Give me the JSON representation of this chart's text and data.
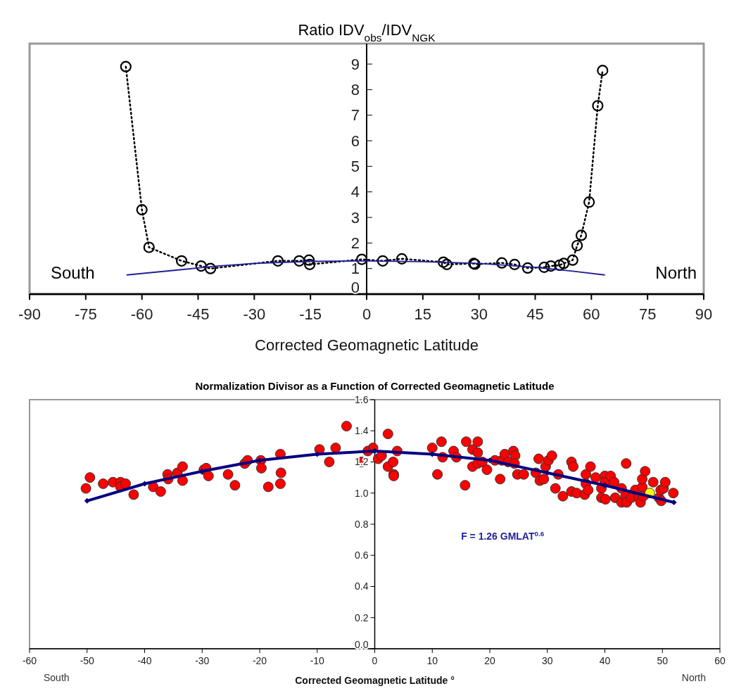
{
  "chart_data": [
    {
      "type": "line",
      "title": "Ratio IDV$_{obs}$/IDV$_{NGK}$",
      "xlabel": "Corrected Geomagnetic Latitude",
      "xlim": [
        -90,
        90
      ],
      "xticks": [
        -90,
        -75,
        -60,
        -45,
        -30,
        -15,
        0,
        15,
        30,
        45,
        60,
        75,
        90
      ],
      "ylim": [
        0,
        9.8
      ],
      "yticks": [
        0,
        1,
        2,
        3,
        4,
        5,
        6,
        7,
        8,
        9
      ],
      "annotations": [
        "South",
        "North"
      ],
      "series": [
        {
          "color": "#000000",
          "marker": "circle",
          "line_style": "dotted",
          "x": [
            -64.3,
            -60,
            -58.1,
            -49.4,
            -44.2,
            -41.7,
            -23.7,
            -18,
            -15.4,
            -15.2,
            -1.3,
            4.3,
            9.4,
            20.5,
            21.4,
            28.6,
            28.9,
            36.1,
            39.5,
            43,
            47.4,
            49.2,
            51.5,
            52.6,
            55,
            56.2,
            57.3,
            59.4,
            61.7,
            63
          ],
          "values": [
            8.9,
            3.3,
            1.83,
            1.3,
            1.1,
            1.0,
            1.3,
            1.3,
            1.33,
            1.16,
            1.36,
            1.3,
            1.38,
            1.25,
            1.16,
            1.2,
            1.17,
            1.22,
            1.16,
            1.02,
            1.05,
            1.1,
            1.13,
            1.2,
            1.33,
            1.9,
            2.3,
            3.6,
            7.37,
            8.75
          ]
        },
        {
          "color": "#1f1f99",
          "marker": "none",
          "line_style": "solid",
          "x": [
            -64,
            -50,
            -40,
            -30,
            -15,
            0,
            15,
            30,
            45,
            55,
            63.5
          ],
          "values": [
            0.75,
            0.95,
            1.1,
            1.2,
            1.28,
            1.3,
            1.27,
            1.2,
            1.05,
            0.9,
            0.75
          ]
        }
      ]
    },
    {
      "type": "scatter",
      "title": "Normalization Divisor as a Function of Corrected Geomagnetic Latitude",
      "xlabel": "Corrected Geomagnetic Latitude °",
      "xlim": [
        -60,
        60
      ],
      "xticks": [
        -60,
        -50,
        -40,
        -30,
        -20,
        -10,
        0,
        10,
        20,
        30,
        40,
        50,
        60
      ],
      "ylim": [
        0,
        1.6
      ],
      "yticks": [
        {
          "value": 0,
          "label": "0.0"
        },
        {
          "value": 0.2,
          "label": "0.2"
        },
        {
          "value": 0.4,
          "label": "0.4"
        },
        {
          "value": 0.6,
          "label": "0.6"
        },
        {
          "value": 0.8,
          "label": "0.8"
        },
        {
          "value": 1,
          "label": "1.0"
        },
        {
          "value": 1.2,
          "label": "1.2"
        },
        {
          "value": 1.4,
          "label": "1.4"
        },
        {
          "value": 1.6,
          "label": "1.6"
        }
      ],
      "annotations": [
        "F = 1.26 GMLAT$^{0.6}$",
        "South",
        "North"
      ],
      "series": [
        {
          "type": "line",
          "color": "#000080",
          "marker": "diamond",
          "line_style": "solid",
          "x": [
            -50,
            -40,
            -30,
            -20,
            -10,
            0,
            10,
            20,
            30,
            40,
            52
          ],
          "values": [
            0.95,
            1.06,
            1.14,
            1.21,
            1.25,
            1.27,
            1.25,
            1.21,
            1.13,
            1.05,
            0.94
          ]
        },
        {
          "color": "#ff0000",
          "marker": "circle",
          "x": [
            -50.2,
            -49.5,
            -47.2,
            -45.5,
            -44.2,
            -44.2,
            -43.3,
            -41.9,
            -38.5,
            -37.2,
            -36.0,
            -35.9,
            -34.3,
            -33.4,
            -33.4,
            -29.7,
            -29.3,
            -28.9,
            -25.5,
            -24.3,
            -22.6,
            -22.1,
            -19.8,
            -19.7,
            -18.5,
            -16.4,
            -16.3,
            -16.4,
            -9.6,
            -7.9,
            -6.8,
            -4.9,
            -2.3,
            -1.2,
            -0.3,
            0.6,
            1.2,
            2.3,
            2.3,
            3.2,
            3.3,
            3.3,
            3.9,
            10.0,
            11.6,
            10.9,
            11.8,
            13.7,
            14.2,
            15.7,
            15.9,
            17.0,
            17.9,
            17.9,
            17.0,
            17.9,
            18.7,
            19.5,
            20.9,
            21.8,
            22.1,
            22.6,
            23.2,
            24.1,
            24.4,
            24.3,
            24.8,
            25.9,
            28.0,
            28.5,
            28.7,
            29.4,
            29.7,
            30.2,
            30.8,
            31.4,
            31.9,
            32.7,
            34.2,
            34.5,
            34.2,
            35.1,
            36.5,
            36.7,
            36.7,
            37.1,
            37.5,
            38.4,
            39.4,
            39.4,
            40.0,
            40.0,
            40.1,
            41.0,
            41.6,
            41.8,
            42.9,
            42.9,
            43.7,
            43.6,
            43.8,
            44.6,
            45.3,
            45.9,
            46.2,
            46.5,
            46.5,
            47.0,
            46.7,
            48.4,
            49.4,
            49.7,
            49.8,
            50.2,
            50.5,
            51.9
          ],
          "values": [
            1.03,
            1.1,
            1.06,
            1.07,
            1.07,
            1.04,
            1.06,
            0.99,
            1.04,
            1.01,
            1.12,
            1.09,
            1.13,
            1.17,
            1.08,
            1.15,
            1.16,
            1.11,
            1.12,
            1.05,
            1.19,
            1.21,
            1.21,
            1.16,
            1.04,
            1.25,
            1.13,
            1.06,
            1.28,
            1.2,
            1.29,
            1.43,
            1.2,
            1.27,
            1.29,
            1.22,
            1.24,
            1.38,
            1.17,
            1.2,
            1.12,
            1.11,
            1.27,
            1.29,
            1.33,
            1.12,
            1.23,
            1.27,
            1.23,
            1.05,
            1.33,
            1.28,
            1.33,
            1.26,
            1.17,
            1.19,
            1.2,
            1.15,
            1.21,
            1.09,
            1.21,
            1.25,
            1.2,
            1.27,
            1.24,
            1.19,
            1.12,
            1.12,
            1.13,
            1.22,
            1.08,
            1.09,
            1.17,
            1.21,
            1.24,
            1.03,
            1.12,
            0.98,
            1.2,
            1.17,
            1.01,
            1.0,
            0.99,
            1.12,
            1.06,
            1.02,
            1.17,
            1.1,
            1.03,
            0.97,
            1.11,
            1.07,
            0.96,
            1.11,
            1.07,
            0.97,
            1.03,
            0.94,
            1.19,
            0.98,
            0.94,
            0.97,
            1.02,
            0.97,
            0.94,
            1.04,
            1.09,
            1.14,
            0.98,
            1.07,
            0.97,
            1.02,
            0.95,
            1.03,
            1.07,
            1.0
          ]
        },
        {
          "color": "#ffff00",
          "marker": "circle",
          "x": [
            47.8
          ],
          "values": [
            1.0
          ]
        }
      ]
    }
  ]
}
